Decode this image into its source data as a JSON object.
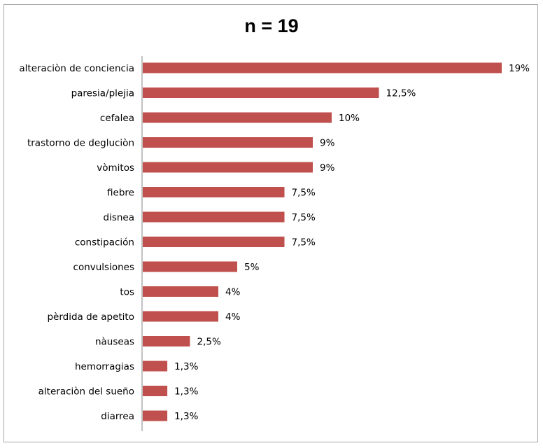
{
  "chart_data": {
    "type": "bar",
    "orientation": "horizontal",
    "title": "n = 19",
    "categories": [
      "alteraciòn de conciencia",
      "paresia/plejia",
      "cefalea",
      "trastorno de degluciòn",
      "vòmitos",
      "fiebre",
      "disnea",
      "constipación",
      "convulsiones",
      "tos",
      "pèrdida de apetito",
      "nàuseas",
      "hemorragias",
      "alteraciòn del sueño",
      "diarrea"
    ],
    "values": [
      19,
      12.5,
      10,
      9,
      9,
      7.5,
      7.5,
      7.5,
      5,
      4,
      4,
      2.5,
      1.3,
      1.3,
      1.3
    ],
    "value_labels": [
      "19%",
      "12,5%",
      "10%",
      "9%",
      "9%",
      "7,5%",
      "7,5%",
      "7,5%",
      "5%",
      "4%",
      "4%",
      "2,5%",
      "1,3%",
      "1,3%",
      "1,3%"
    ],
    "xlim": [
      0,
      19
    ],
    "bar_color": "#c0504d",
    "grid": false,
    "legend": "none"
  }
}
